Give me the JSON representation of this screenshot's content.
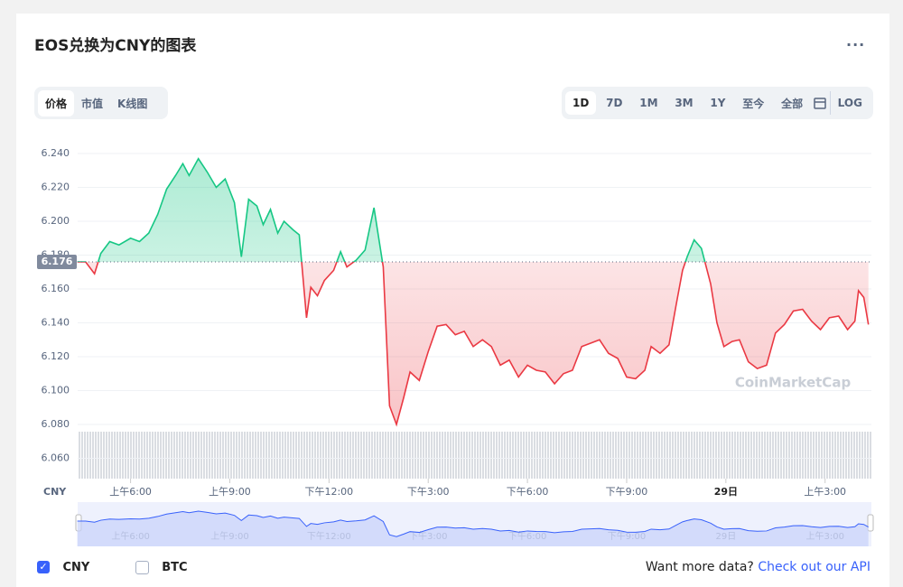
{
  "ui": {
    "title": "EOS兑换为CNY的图表",
    "more": "...",
    "tabs": [
      "价格",
      "市值",
      "K线图"
    ],
    "ranges": [
      "1D",
      "7D",
      "1M",
      "3M",
      "1Y",
      "至今",
      "全部",
      "LOG"
    ],
    "checkboxes": [
      "CNY",
      "BTC"
    ],
    "footer_text": "Want more data?",
    "footer_link": "Check out our API",
    "watermark": "CoinMarketCap"
  },
  "chart_data": {
    "type": "line",
    "y_label": "CNY",
    "baseline": 6.176,
    "x": [
      4.39,
      4.64,
      4.91,
      5.1,
      5.37,
      5.65,
      6.0,
      6.27,
      6.55,
      6.82,
      7.09,
      7.36,
      7.58,
      7.77,
      8.05,
      8.32,
      8.59,
      8.86,
      9.14,
      9.35,
      9.57,
      9.82,
      10.01,
      10.23,
      10.45,
      10.64,
      10.91,
      11.1,
      11.32,
      11.45,
      11.65,
      11.86,
      12.14,
      12.35,
      12.54,
      12.82,
      13.09,
      13.36,
      13.64,
      13.83,
      14.04,
      14.26,
      14.45,
      14.73,
      15.0,
      15.27,
      15.54,
      15.82,
      16.09,
      16.36,
      16.64,
      16.91,
      17.18,
      17.45,
      17.73,
      18.0,
      18.27,
      18.54,
      18.82,
      19.09,
      19.36,
      19.64,
      19.91,
      20.18,
      20.45,
      20.73,
      21.0,
      21.27,
      21.55,
      21.74,
      22.01,
      22.28,
      22.5,
      22.69,
      22.83,
      23.04,
      23.26,
      23.54,
      23.73,
      23.94,
      24.19,
      24.41,
      24.68,
      24.95,
      25.23,
      25.5,
      25.77,
      26.04,
      26.32,
      26.59,
      26.86,
      27.13,
      27.41,
      27.68,
      27.9,
      28.01,
      28.17,
      28.31
    ],
    "series": [
      {
        "name": "EOS/CNY",
        "color": "#16c784",
        "color_down": "#ea3943",
        "values": [
          6.176,
          6.176,
          6.169,
          6.181,
          6.188,
          6.186,
          6.19,
          6.188,
          6.193,
          6.204,
          6.219,
          6.227,
          6.234,
          6.227,
          6.237,
          6.229,
          6.22,
          6.225,
          6.211,
          6.179,
          6.213,
          6.209,
          6.198,
          6.207,
          6.193,
          6.2,
          6.195,
          6.192,
          6.143,
          6.161,
          6.156,
          6.165,
          6.171,
          6.182,
          6.173,
          6.177,
          6.183,
          6.208,
          6.173,
          6.091,
          6.08,
          6.096,
          6.111,
          6.106,
          6.123,
          6.138,
          6.139,
          6.133,
          6.135,
          6.126,
          6.13,
          6.126,
          6.115,
          6.118,
          6.108,
          6.115,
          6.112,
          6.111,
          6.104,
          6.11,
          6.112,
          6.126,
          6.128,
          6.13,
          6.122,
          6.119,
          6.108,
          6.107,
          6.112,
          6.126,
          6.122,
          6.127,
          6.151,
          6.171,
          6.179,
          6.189,
          6.184,
          6.163,
          6.14,
          6.126,
          6.129,
          6.13,
          6.117,
          6.113,
          6.115,
          6.134,
          6.139,
          6.147,
          6.148,
          6.141,
          6.136,
          6.143,
          6.144,
          6.136,
          6.141,
          6.159,
          6.155,
          6.139
        ]
      }
    ],
    "xlim": [
      4.4,
      28.4
    ],
    "xticks": [
      {
        "value": 6,
        "label": "上午6:00"
      },
      {
        "value": 9,
        "label": "上午9:00"
      },
      {
        "value": 12,
        "label": "下午12:00"
      },
      {
        "value": 15,
        "label": "下午3:00"
      },
      {
        "value": 18,
        "label": "下午6:00"
      },
      {
        "value": 21,
        "label": "下午9:00"
      },
      {
        "value": 24,
        "label": "29日"
      },
      {
        "value": 27,
        "label": "上午3:00"
      }
    ],
    "ylim": [
      6.048,
      6.248
    ],
    "yticks": [
      {
        "value": 6.06,
        "label": "6.060"
      },
      {
        "value": 6.08,
        "label": "6.080"
      },
      {
        "value": 6.1,
        "label": "6.100"
      },
      {
        "value": 6.12,
        "label": "6.120"
      },
      {
        "value": 6.14,
        "label": "6.140"
      },
      {
        "value": 6.16,
        "label": "6.160"
      },
      {
        "value": 6.18,
        "label": "6.180"
      },
      {
        "value": 6.2,
        "label": "6.200"
      },
      {
        "value": 6.22,
        "label": "6.220"
      },
      {
        "value": 6.24,
        "label": "6.240"
      }
    ],
    "grid": true
  }
}
